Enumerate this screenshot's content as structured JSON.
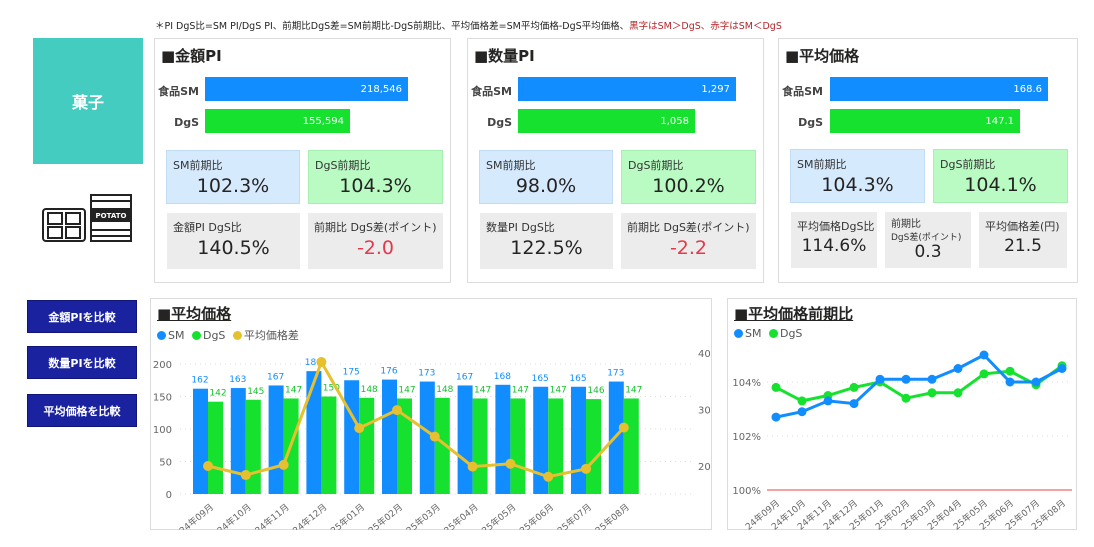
{
  "note": {
    "black": "＊PI DgS比=SM PI/DgS PI、前期比DgS差=SM前期比-DgS前期比、平均価格差=SM平均価格-DgS平均価格、",
    "red": "黒字はSM＞DgS、赤字はSM＜DgS"
  },
  "category": "菓子",
  "icon_text": "POTATO",
  "buttons": [
    "金額PIを比較",
    "数量PIを比較",
    "平均価格を比較"
  ],
  "colors": {
    "sm": "#118dff",
    "dgs": "#15e12e",
    "diff": "#e6c02e",
    "teal": "#45ccc0",
    "button": "#1a22a0",
    "negative": "#e23a4a"
  },
  "panels": {
    "amount": {
      "title": "■金額PI",
      "sm_label": "食品SM",
      "dgs_label": "DgS",
      "sm_value": "218,546",
      "dgs_value": "155,594",
      "sm_fill": 1.0,
      "dgs_fill": 0.712,
      "sm_yoy_label": "SM前期比",
      "sm_yoy": "102.3%",
      "dgs_yoy_label": "DgS前期比",
      "dgs_yoy": "104.3%",
      "ratio_label": "金額PI DgS比",
      "ratio": "140.5%",
      "diff_label": "前期比 DgS差(ポイント)",
      "diff": "-2.0"
    },
    "quantity": {
      "title": "■数量PI",
      "sm_label": "食品SM",
      "dgs_label": "DgS",
      "sm_value": "1,297",
      "dgs_value": "1,058",
      "sm_fill": 1.0,
      "dgs_fill": 0.816,
      "sm_yoy_label": "SM前期比",
      "sm_yoy": "98.0%",
      "dgs_yoy_label": "DgS前期比",
      "dgs_yoy": "100.2%",
      "ratio_label": "数量PI DgS比",
      "ratio": "122.5%",
      "diff_label": "前期比 DgS差(ポイント)",
      "diff": "-2.2"
    },
    "price": {
      "title": "■平均価格",
      "sm_label": "食品SM",
      "dgs_label": "DgS",
      "sm_value": "168.6",
      "dgs_value": "147.1",
      "sm_fill": 1.0,
      "dgs_fill": 0.872,
      "sm_yoy_label": "SM前期比",
      "sm_yoy": "104.3%",
      "dgs_yoy_label": "DgS前期比",
      "dgs_yoy": "104.1%",
      "ratio_label": "平均価格DgS比",
      "ratio": "114.6%",
      "diff_label1": "前期比",
      "diff_label2": "DgS差(ポイント)",
      "diff": "0.3",
      "gap_label": "平均価格差(円)",
      "gap": "21.5"
    }
  },
  "chart_data": [
    {
      "type": "bar",
      "title": "■平均価格",
      "legend": [
        "SM",
        "DgS",
        "平均価格差"
      ],
      "categories": [
        "24年09月",
        "24年10月",
        "24年11月",
        "24年12月",
        "25年01月",
        "25年02月",
        "25年03月",
        "25年04月",
        "25年05月",
        "25年06月",
        "25年07月",
        "25年08月"
      ],
      "series": [
        {
          "name": "SM",
          "values": [
            162,
            163,
            167,
            189,
            175,
            176,
            173,
            167,
            168,
            165,
            165,
            173
          ]
        },
        {
          "name": "DgS",
          "values": [
            142,
            145,
            147,
            150,
            148,
            147,
            148,
            147,
            147,
            147,
            146,
            147
          ]
        },
        {
          "name": "平均価格差",
          "axis": "right",
          "values": [
            20.0,
            18.4,
            20.2,
            38.4,
            26.7,
            29.9,
            25.2,
            19.9,
            20.4,
            18.1,
            19.5,
            26.8
          ]
        }
      ],
      "ylim": [
        0,
        200
      ],
      "yticks": [
        0,
        50,
        100,
        150,
        200
      ],
      "y2lim": [
        15,
        40
      ],
      "y2ticks": [
        20,
        30,
        40
      ]
    },
    {
      "type": "line",
      "title": "■平均価格前期比",
      "legend": [
        "SM",
        "DgS"
      ],
      "categories": [
        "24年09月",
        "24年10月",
        "24年11月",
        "24年12月",
        "25年01月",
        "25年02月",
        "25年03月",
        "25年04月",
        "25年05月",
        "25年06月",
        "25年07月",
        "25年08月"
      ],
      "series": [
        {
          "name": "SM",
          "values": [
            102.7,
            102.9,
            103.3,
            103.2,
            104.1,
            104.1,
            104.1,
            104.5,
            105.0,
            104.0,
            104.0,
            104.5
          ]
        },
        {
          "name": "DgS",
          "values": [
            103.8,
            103.3,
            103.5,
            103.8,
            104.0,
            103.4,
            103.6,
            103.6,
            104.3,
            104.4,
            103.9,
            104.6
          ]
        }
      ],
      "ylim": [
        100,
        105.5
      ],
      "yticks": [
        "100%",
        "102%",
        "104%"
      ],
      "reference_line": 100
    }
  ]
}
